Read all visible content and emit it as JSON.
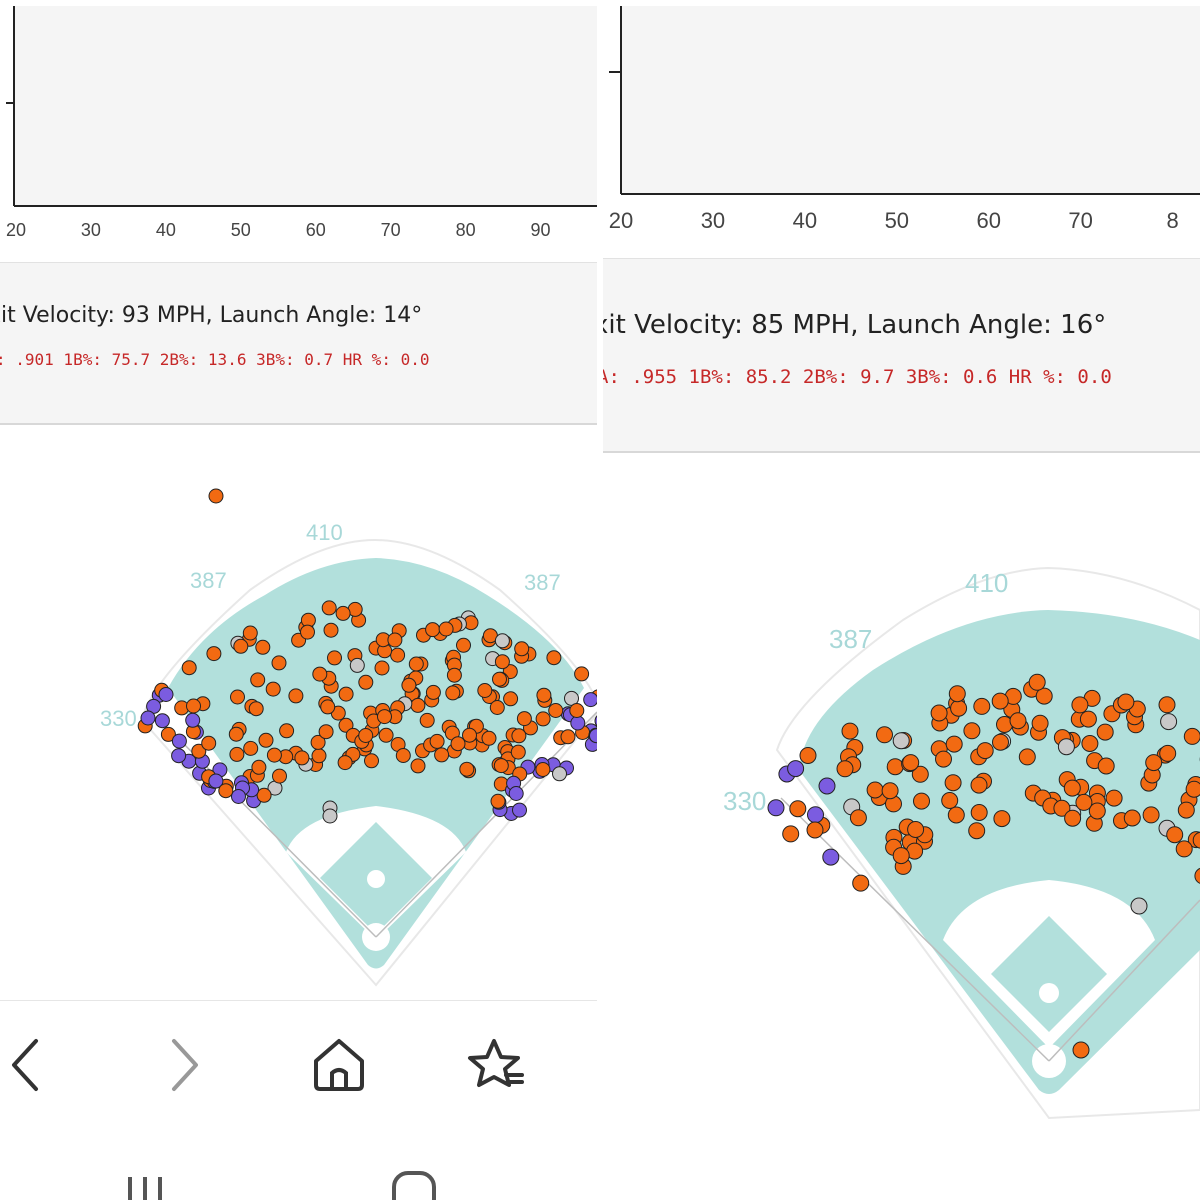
{
  "left": {
    "chart_data": {
      "type": "scatter",
      "xlim": [
        20,
        95
      ],
      "x_ticks": [
        "20",
        "30",
        "40",
        "50",
        "60",
        "70",
        "80",
        "90"
      ],
      "points": []
    },
    "exit_velocity_text": "xit Velocity: 93 MPH, Launch Angle: 14°",
    "stats_text": ": .901 1B%: 75.7 2B%: 13.6 3B%: 0.7 HR %: 0.0",
    "field_labels": {
      "center": "410",
      "left_center": "387",
      "right_center": "387",
      "left_line": "330"
    }
  },
  "right": {
    "chart_data": {
      "type": "scatter",
      "xlim": [
        20,
        82
      ],
      "x_ticks": [
        "20",
        "30",
        "40",
        "50",
        "60",
        "70",
        "8"
      ],
      "points": []
    },
    "exit_velocity_text": "xit Velocity: 85 MPH, Launch Angle: 16°",
    "stats_text": "A: .955 1B%: 85.2 2B%: 9.7 3B%: 0.6 HR %: 0.0",
    "field_labels": {
      "center": "410",
      "left_center": "387",
      "left_line": "330"
    }
  },
  "colors": {
    "single": "#f26a12",
    "out": "#7b5ce0",
    "other": "#c8c8c8",
    "field": "#b2e0dc",
    "danger_text": "#c62828"
  },
  "nav": {
    "back_icon": "chevron-left-icon",
    "forward_icon": "chevron-right-icon",
    "home_icon": "home-icon",
    "bookmark_icon": "star-list-icon"
  }
}
